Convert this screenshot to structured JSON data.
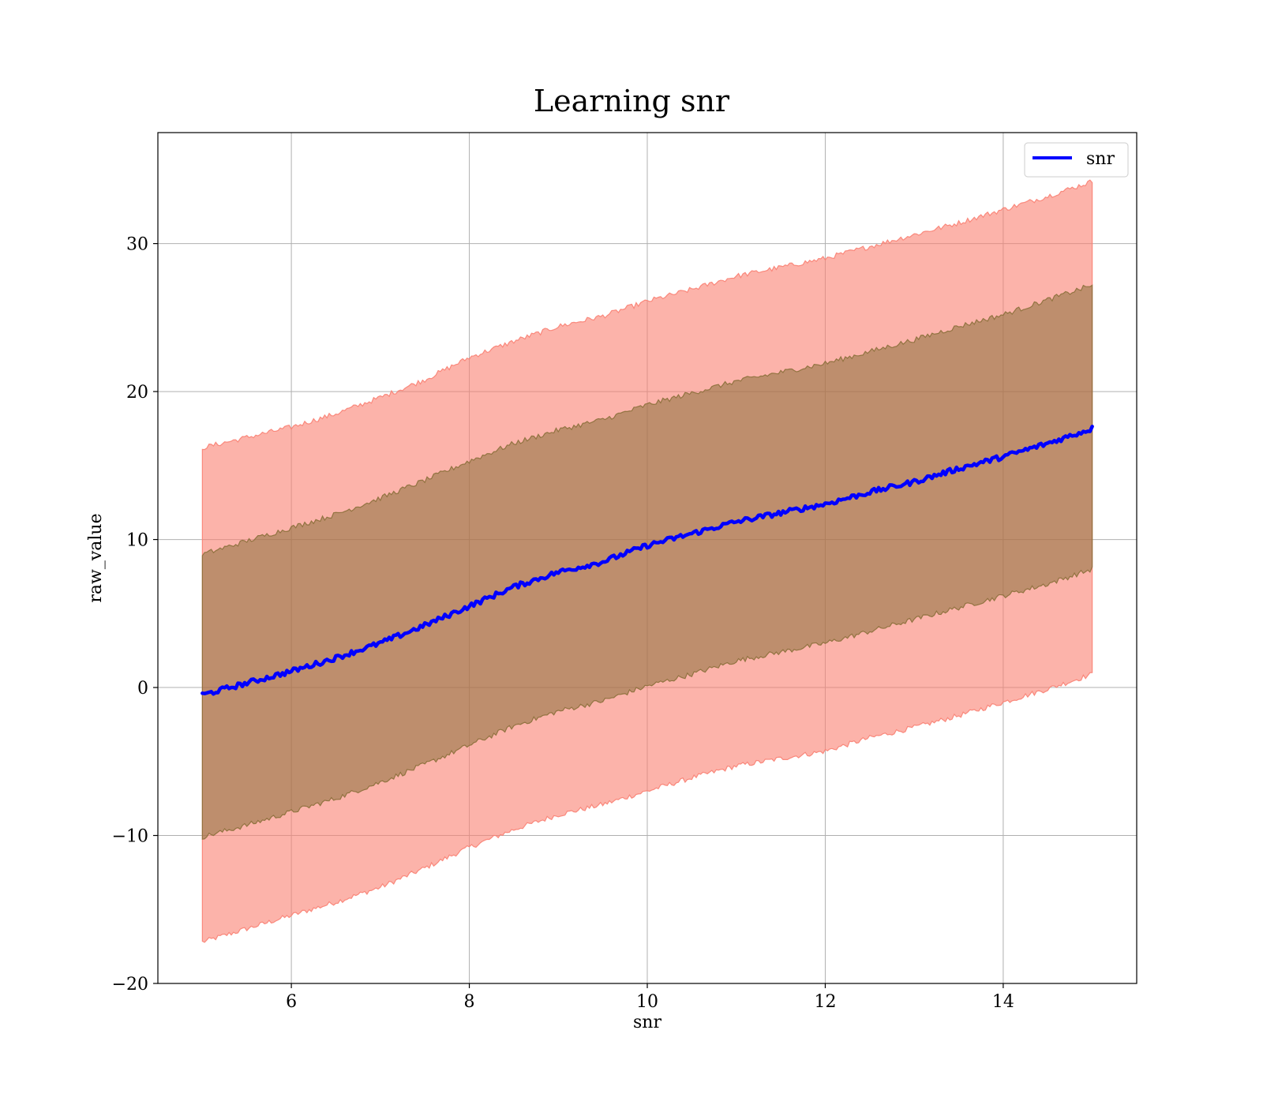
{
  "chart_data": {
    "type": "line",
    "title": "Learning snr",
    "xlabel": "snr",
    "ylabel": "raw_value",
    "xlim": [
      4.5,
      15.5
    ],
    "ylim": [
      -20,
      37.5
    ],
    "xticks": [
      6,
      8,
      10,
      12,
      14
    ],
    "yticks": [
      -20,
      -10,
      0,
      10,
      20,
      30
    ],
    "xtick_labels": [
      "6",
      "8",
      "10",
      "12",
      "14"
    ],
    "ytick_labels": [
      "−20",
      "−10",
      "0",
      "10",
      "20",
      "30"
    ],
    "grid": true,
    "legend_position": "upper right",
    "x": [
      5,
      5.5,
      6,
      6.5,
      7,
      7.5,
      8,
      8.5,
      9,
      9.5,
      10,
      10.5,
      11,
      11.5,
      12,
      12.5,
      13,
      13.5,
      14,
      14.5,
      15
    ],
    "series": [
      {
        "name": "snr",
        "color": "#0000ff",
        "values": [
          -0.5,
          0.3,
          1.1,
          2.0,
          3.0,
          4.2,
          5.5,
          6.8,
          7.8,
          8.5,
          9.6,
          10.4,
          11.2,
          11.8,
          12.4,
          13.2,
          13.9,
          14.8,
          15.6,
          16.5,
          17.5
        ]
      }
    ],
    "bands": [
      {
        "role": "outer",
        "color": "#fa8072",
        "lower": [
          -17.2,
          -16.3,
          -15.4,
          -14.5,
          -13.5,
          -12.2,
          -10.8,
          -9.6,
          -8.6,
          -7.9,
          -7.0,
          -6.1,
          -5.3,
          -4.8,
          -4.3,
          -3.4,
          -2.7,
          -1.9,
          -1.0,
          -0.1,
          0.9
        ],
        "upper": [
          16.2,
          16.9,
          17.6,
          18.5,
          19.6,
          20.8,
          22.3,
          23.4,
          24.4,
          25.1,
          26.1,
          26.9,
          27.8,
          28.4,
          29.0,
          29.8,
          30.6,
          31.4,
          32.3,
          33.2,
          34.2
        ]
      },
      {
        "role": "inner",
        "color": "#8b6f3a",
        "lower": [
          -10.1,
          -9.3,
          -8.4,
          -7.5,
          -6.4,
          -5.2,
          -3.9,
          -2.6,
          -1.6,
          -0.9,
          0.1,
          0.9,
          1.8,
          2.4,
          3.0,
          3.8,
          4.6,
          5.4,
          6.2,
          7.0,
          8.0
        ],
        "upper": [
          9.0,
          9.9,
          10.8,
          11.7,
          12.8,
          14.0,
          15.3,
          16.5,
          17.4,
          18.1,
          19.1,
          19.9,
          20.7,
          21.3,
          21.9,
          22.7,
          23.5,
          24.4,
          25.2,
          26.2,
          27.2
        ]
      }
    ]
  }
}
